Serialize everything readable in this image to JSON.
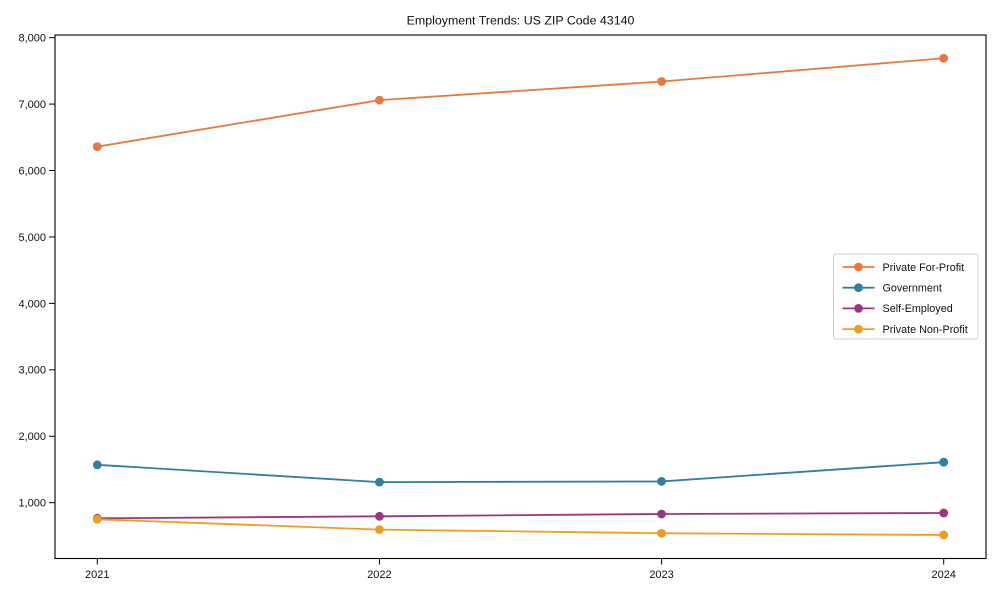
{
  "chart_data": {
    "type": "line",
    "title": "Employment Trends: US ZIP Code 43140",
    "x_categories": [
      "2021",
      "2022",
      "2023",
      "2024"
    ],
    "series": [
      {
        "name": "Private For-Profit",
        "color": "#E8793C",
        "values": [
          6360,
          7060,
          7340,
          7690
        ]
      },
      {
        "name": "Government",
        "color": "#2E7FA0",
        "values": [
          1570,
          1310,
          1320,
          1610
        ]
      },
      {
        "name": "Self-Employed",
        "color": "#9E337F",
        "values": [
          765,
          795,
          830,
          845
        ]
      },
      {
        "name": "Private Non-Profit",
        "color": "#F09D1F",
        "values": [
          750,
          595,
          540,
          515
        ]
      }
    ],
    "y_ticks": [
      1000,
      2000,
      3000,
      4000,
      5000,
      6000,
      7000,
      8000
    ],
    "y_tick_labels": [
      "1,000",
      "2,000",
      "3,000",
      "4,000",
      "5,000",
      "6,000",
      "7,000",
      "8,000"
    ],
    "ylim": [
      160,
      8040
    ],
    "xlabel": "",
    "ylabel": "",
    "grid": false,
    "legend_position": "center-right",
    "marker": "circle",
    "axis_color": "#000000",
    "legend_border_color": "#cccccc",
    "text_color": "#111111",
    "background": "#ffffff"
  }
}
